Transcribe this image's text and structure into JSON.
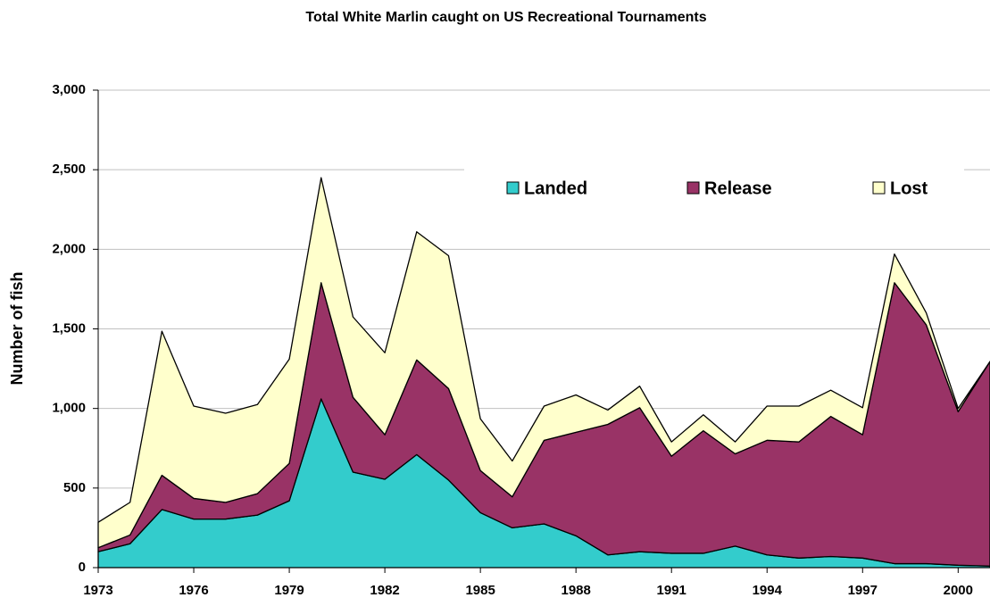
{
  "chart_data": {
    "type": "stacked_area",
    "title": "Total White Marlin caught on US Recreational Tournaments",
    "y_label": "Number of fish",
    "x": [
      1973,
      1974,
      1975,
      1976,
      1977,
      1978,
      1979,
      1980,
      1981,
      1982,
      1983,
      1984,
      1985,
      1986,
      1987,
      1988,
      1989,
      1990,
      1991,
      1992,
      1993,
      1994,
      1995,
      1996,
      1997,
      1998,
      1999,
      2000,
      2001
    ],
    "xlim": [
      1973,
      2001
    ],
    "xticks": [
      1973,
      1976,
      1979,
      1982,
      1985,
      1988,
      1991,
      1994,
      1997,
      2000
    ],
    "ylim": [
      0,
      3000
    ],
    "yticks": [
      0,
      500,
      {
        "value": 1000,
        "label": "1,000"
      },
      {
        "value": 1500,
        "label": "1,500"
      },
      {
        "value": 2000,
        "label": "2,000"
      },
      {
        "value": 2500,
        "label": "2,500"
      },
      {
        "value": 3000,
        "label": "3,000"
      }
    ],
    "grid": true,
    "legend": "top-right",
    "series": [
      {
        "name": "Landed",
        "color": "#33cccc",
        "values": [
          100,
          150,
          365,
          305,
          305,
          330,
          420,
          1060,
          600,
          555,
          710,
          550,
          345,
          250,
          275,
          200,
          80,
          100,
          90,
          90,
          135,
          80,
          60,
          70,
          60,
          25,
          25,
          15,
          10
        ]
      },
      {
        "name": "Release",
        "color": "#993366",
        "values": [
          25,
          55,
          215,
          130,
          105,
          135,
          235,
          730,
          470,
          280,
          595,
          575,
          265,
          195,
          525,
          650,
          820,
          905,
          610,
          770,
          580,
          720,
          730,
          880,
          775,
          1765,
          1500,
          965,
          1285
        ]
      },
      {
        "name": "Lost",
        "color": "#ffffcc",
        "values": [
          160,
          205,
          905,
          580,
          560,
          560,
          655,
          660,
          505,
          515,
          805,
          835,
          325,
          225,
          215,
          235,
          90,
          135,
          90,
          100,
          75,
          215,
          225,
          165,
          170,
          180,
          75,
          20,
          0
        ]
      }
    ]
  }
}
